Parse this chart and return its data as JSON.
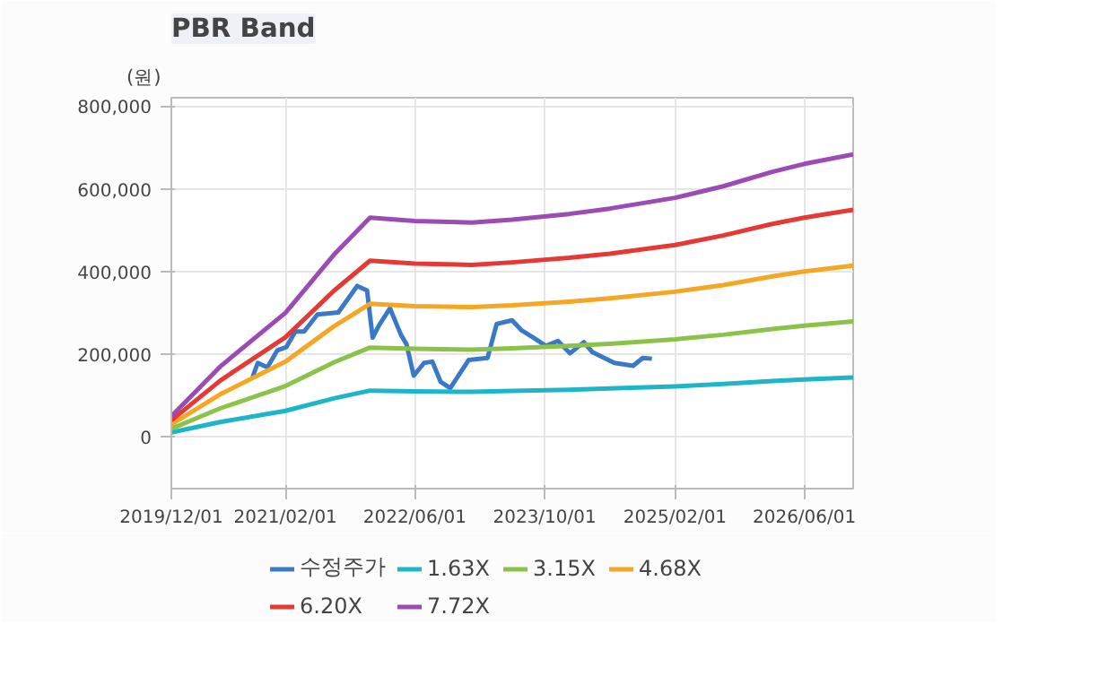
{
  "chart_data": {
    "type": "line",
    "title": "PBR Band",
    "ylabel": "(원)",
    "xlim": [
      "2019-12-01",
      "2026-12-01"
    ],
    "ylim": [
      -125000,
      820000
    ],
    "xticks": [
      {
        "value": "2019-12-01",
        "label": "2019/12/01"
      },
      {
        "value": "2021-02-01",
        "label": "2021/02/01"
      },
      {
        "value": "2022-06-01",
        "label": "2022/06/01"
      },
      {
        "value": "2023-10-01",
        "label": "2023/10/01"
      },
      {
        "value": "2025-02-01",
        "label": "2025/02/01"
      },
      {
        "value": "2026-06-01",
        "label": "2026/06/01"
      }
    ],
    "yticks": [
      {
        "value": 0,
        "label": "0"
      },
      {
        "value": 200000,
        "label": "200,000"
      },
      {
        "value": 400000,
        "label": "400,000"
      },
      {
        "value": 600000,
        "label": "600,000"
      },
      {
        "value": 800000,
        "label": "800,000"
      }
    ],
    "x": [
      "2019-12-01",
      "2020-06-01",
      "2021-02-01",
      "2021-08-01",
      "2021-12-15",
      "2022-06-01",
      "2023-01-01",
      "2023-06-01",
      "2024-01-01",
      "2024-06-01",
      "2025-02-01",
      "2025-08-01",
      "2026-02-01",
      "2026-06-01",
      "2026-12-01"
    ],
    "grid": true,
    "legend": "bottom",
    "marker": "none",
    "line_style": "solid",
    "series": [
      {
        "name": "수정주가",
        "color": "#3a78c8",
        "x": [
          "2020-10-01",
          "2020-10-20",
          "2020-11-25",
          "2021-01-01",
          "2021-02-04",
          "2021-03-10",
          "2021-04-12",
          "2021-06-01",
          "2021-08-18",
          "2021-10-28",
          "2021-12-04",
          "2021-12-25",
          "2022-01-18",
          "2022-02-28",
          "2022-04-10",
          "2022-05-01",
          "2022-05-28",
          "2022-07-06",
          "2022-08-06",
          "2022-09-06",
          "2022-10-12",
          "2022-12-20",
          "2023-03-01",
          "2023-04-04",
          "2023-06-01",
          "2023-07-06",
          "2023-08-20",
          "2023-10-06",
          "2023-11-20",
          "2024-01-04",
          "2024-02-25",
          "2024-03-28",
          "2024-06-18",
          "2024-08-28",
          "2024-10-03",
          "2024-11-06"
        ],
        "values": [
          145000,
          179000,
          168000,
          209000,
          217000,
          255000,
          255000,
          296000,
          301000,
          365000,
          354000,
          240000,
          270000,
          311000,
          247000,
          224000,
          148000,
          179000,
          182000,
          133000,
          118000,
          186000,
          191000,
          273000,
          282000,
          258000,
          240000,
          220000,
          232000,
          202000,
          229000,
          205000,
          179000,
          172000,
          191000,
          189000
        ]
      },
      {
        "name": "1.63X",
        "color": "#1fb5c8",
        "values": [
          11000,
          36000,
          63000,
          93000,
          112000,
          110000,
          109000,
          111000,
          114000,
          117000,
          122000,
          128000,
          135000,
          139000,
          144000
        ]
      },
      {
        "name": "3.15X",
        "color": "#8bc34a",
        "values": [
          20000,
          69000,
          123000,
          180000,
          216000,
          213000,
          211000,
          214000,
          220000,
          225000,
          236000,
          247000,
          261000,
          269000,
          279000
        ]
      },
      {
        "name": "4.68X",
        "color": "#f5a623",
        "values": [
          30000,
          103000,
          182000,
          267000,
          322000,
          316000,
          314000,
          318000,
          327000,
          335000,
          351000,
          367000,
          388000,
          400000,
          414000
        ]
      },
      {
        "name": "6.20X",
        "color": "#e53935",
        "values": [
          40000,
          136000,
          241000,
          353000,
          426000,
          419000,
          416000,
          422000,
          433000,
          443000,
          464000,
          487000,
          515000,
          530000,
          549000
        ]
      },
      {
        "name": "7.72X",
        "color": "#9c4bb5",
        "values": [
          50000,
          170000,
          300000,
          440000,
          530000,
          522000,
          518000,
          525000,
          539000,
          552000,
          578000,
          606000,
          641000,
          660000,
          683000
        ]
      }
    ]
  }
}
